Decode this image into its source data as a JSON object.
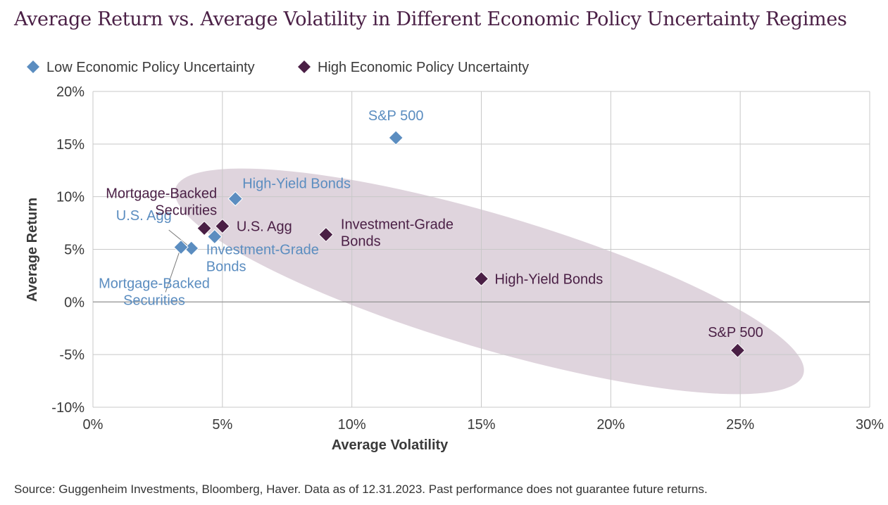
{
  "title": "Average Return vs. Average Volatility in Different Economic Policy Uncertainty Regimes",
  "source": "Source: Guggenheim Investments, Bloomberg, Haver. Data as of 12.31.2023. Past performance does not guarantee future returns.",
  "colors": {
    "low": "#5b8dc0",
    "high": "#4a1f45",
    "ellipse": "#d9ccd7",
    "grid": "#c8c8c8",
    "zero_line": "#9a9a9a"
  },
  "chart_data": {
    "type": "scatter",
    "title": "Average Return vs. Average Volatility in Different Economic Policy Uncertainty Regimes",
    "xlabel": "Average Volatility",
    "ylabel": "Average Return",
    "xlim": [
      0,
      30
    ],
    "ylim": [
      -10,
      20
    ],
    "x_ticks": [
      0,
      5,
      10,
      15,
      20,
      25,
      30
    ],
    "y_ticks": [
      -10,
      -5,
      0,
      5,
      10,
      15,
      20
    ],
    "x_tick_labels": [
      "0%",
      "5%",
      "10%",
      "15%",
      "20%",
      "25%",
      "30%"
    ],
    "y_tick_labels": [
      "-10%",
      "-5%",
      "0%",
      "5%",
      "10%",
      "15%",
      "20%"
    ],
    "grid": true,
    "legend_position": "top-left",
    "series": [
      {
        "name": "Low Economic Policy Uncertainty",
        "color": "#5b8dc0",
        "points": [
          {
            "label": "S&P 500",
            "x": 11.7,
            "y": 15.6
          },
          {
            "label": "High-Yield Bonds",
            "x": 5.5,
            "y": 9.8
          },
          {
            "label": "U.S. Agg",
            "x": 3.8,
            "y": 5.1
          },
          {
            "label": "Investment-Grade Bonds",
            "x": 4.7,
            "y": 6.2
          },
          {
            "label": "Mortgage-Backed Securities",
            "x": 3.4,
            "y": 5.2
          }
        ]
      },
      {
        "name": "High Economic Policy Uncertainty",
        "color": "#4a1f45",
        "points": [
          {
            "label": "Mortgage-Backed Securities",
            "x": 4.3,
            "y": 7.0
          },
          {
            "label": "U.S. Agg",
            "x": 5.0,
            "y": 7.2
          },
          {
            "label": "Investment-Grade Bonds",
            "x": 9.0,
            "y": 6.4
          },
          {
            "label": "High-Yield Bonds",
            "x": 15.0,
            "y": 2.2
          },
          {
            "label": "S&P 500",
            "x": 24.9,
            "y": -4.6
          }
        ]
      }
    ]
  }
}
